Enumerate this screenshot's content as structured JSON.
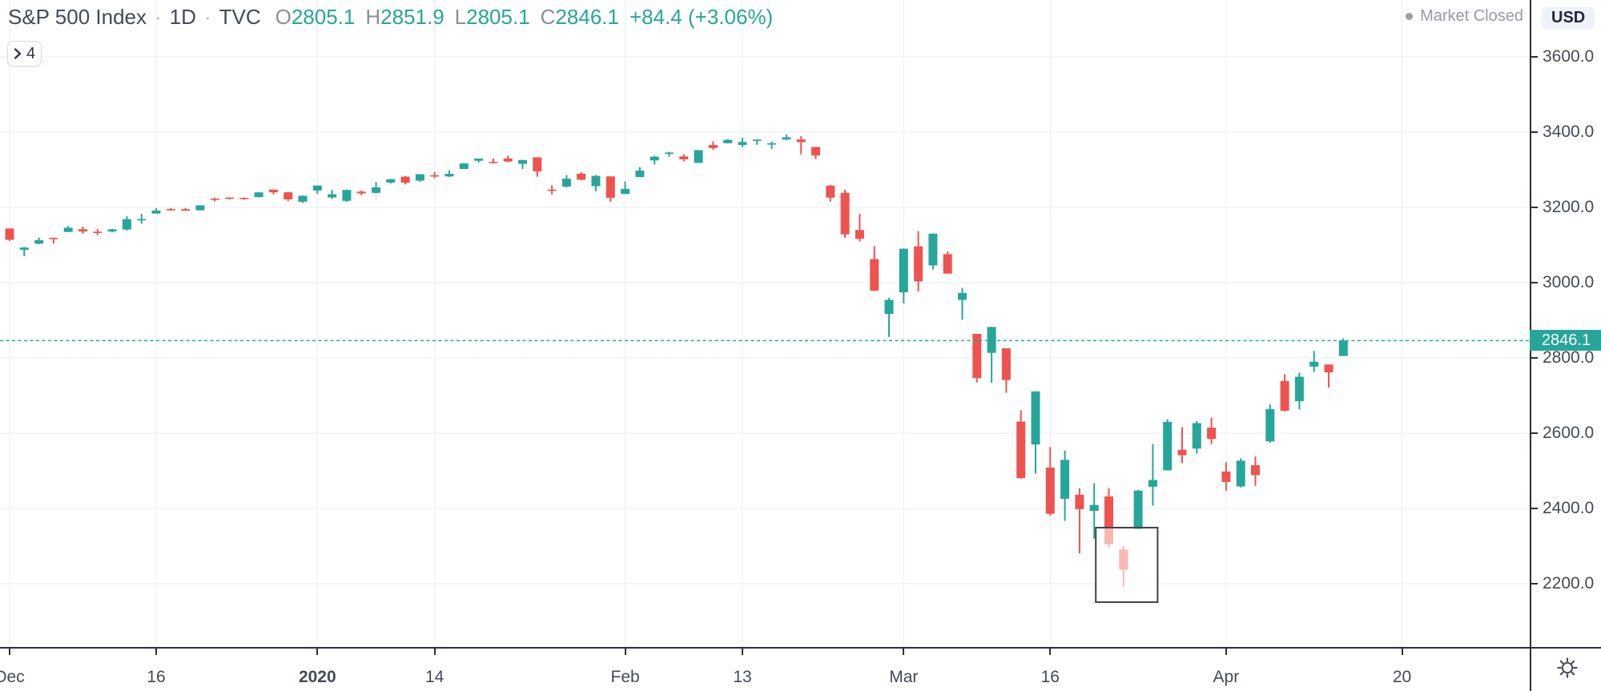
{
  "header": {
    "symbol": "S&P 500 Index",
    "separator": "·",
    "interval": "1D",
    "exchange": "TVC",
    "ohlc": [
      {
        "label": "O",
        "value": "2805.1"
      },
      {
        "label": "H",
        "value": "2851.9"
      },
      {
        "label": "L",
        "value": "2805.1"
      },
      {
        "label": "C",
        "value": "2846.1"
      }
    ],
    "change": "+84.4 (+3.06%)",
    "market_status": "Market Closed",
    "currency": "USD"
  },
  "toolbar": {
    "tree_button_count": "4"
  },
  "price_axis": {
    "last_price_label": "2846.1"
  },
  "colors": {
    "up": "#26a69a",
    "down": "#ef5350",
    "grid": "#e8eef5",
    "axis_line": "#2b2f3a",
    "axis_text": "#444a55",
    "legend_text": "#454a57",
    "muted_text": "#8c8f98",
    "status_text": "#999ca4",
    "currency_badge_bg": "#eff2f8",
    "last_price_bg": "#26a69a",
    "drawing_border": "#3e424d",
    "drawing_fill": "rgba(255,255,255,0.58)"
  },
  "chart_data": {
    "type": "candlestick",
    "title": "S&P 500 Index",
    "interval": "1D",
    "exchange": "TVC",
    "currency": "USD",
    "grid": "on",
    "ylim": [
      2030,
      3755
    ],
    "price_line": 2846.1,
    "price_gridlines": [
      {
        "price": 3600,
        "text": "3600.0"
      },
      {
        "price": 3400,
        "text": "3400.0"
      },
      {
        "price": 3200,
        "text": "3200.0"
      },
      {
        "price": 3000,
        "text": "3000.0"
      },
      {
        "price": 2800,
        "text": "2800.0"
      },
      {
        "price": 2600,
        "text": "2600.0"
      },
      {
        "price": 2400,
        "text": "2400.0"
      },
      {
        "price": 2200,
        "text": "2200.0"
      }
    ],
    "time_labels": [
      {
        "text": "Dec",
        "index": 0,
        "bold": false
      },
      {
        "text": "16",
        "index": 10,
        "bold": false
      },
      {
        "text": "2020",
        "index": 21,
        "bold": true
      },
      {
        "text": "14",
        "index": 29,
        "bold": false
      },
      {
        "text": "Feb",
        "index": 42,
        "bold": false
      },
      {
        "text": "13",
        "index": 50,
        "bold": false
      },
      {
        "text": "Mar",
        "index": 61,
        "bold": false
      },
      {
        "text": "16",
        "index": 71,
        "bold": false
      },
      {
        "text": "Apr",
        "index": 83,
        "bold": false
      },
      {
        "text": "20",
        "index": 95,
        "bold": false
      }
    ],
    "drawing_rectangle": {
      "start_index": 74,
      "end_index": 78,
      "start_date": "2020-03-19",
      "end_date": "2020-03-25",
      "price_top": 2349,
      "price_bottom": 2151
    },
    "columns": [
      "date",
      "open",
      "high",
      "low",
      "close"
    ],
    "candles": [
      [
        "2019-12-02",
        3143.9,
        3144.3,
        3110.8,
        3113.9
      ],
      [
        "2019-12-03",
        3087.4,
        3094.9,
        3070.3,
        3093.2
      ],
      [
        "2019-12-04",
        3103.5,
        3119.4,
        3102.2,
        3112.8
      ],
      [
        "2019-12-05",
        3119.2,
        3119.4,
        3103.8,
        3117.4
      ],
      [
        "2019-12-06",
        3134.6,
        3150.6,
        3134.6,
        3145.9
      ],
      [
        "2019-12-09",
        3141.9,
        3148.9,
        3130.0,
        3136.0
      ],
      [
        "2019-12-10",
        3135.4,
        3142.1,
        3126.1,
        3132.5
      ],
      [
        "2019-12-11",
        3135.8,
        3143.3,
        3133.2,
        3141.6
      ],
      [
        "2019-12-12",
        3141.2,
        3176.3,
        3138.5,
        3168.6
      ],
      [
        "2019-12-13",
        3166.7,
        3182.7,
        3156.5,
        3168.8
      ],
      [
        "2019-12-16",
        3183.6,
        3197.7,
        3183.6,
        3191.5
      ],
      [
        "2019-12-17",
        3195.4,
        3198.2,
        3191.0,
        3192.5
      ],
      [
        "2019-12-18",
        3195.2,
        3198.5,
        3191.1,
        3191.1
      ],
      [
        "2019-12-19",
        3192.3,
        3205.5,
        3192.3,
        3205.4
      ],
      [
        "2019-12-20",
        3223.3,
        3225.7,
        3216.0,
        3221.2
      ],
      [
        "2019-12-23",
        3226.1,
        3226.4,
        3220.5,
        3224.0
      ],
      [
        "2019-12-24",
        3225.4,
        3226.3,
        3220.1,
        3223.4
      ],
      [
        "2019-12-26",
        3227.2,
        3240.1,
        3227.2,
        3239.9
      ],
      [
        "2019-12-27",
        3247.2,
        3247.9,
        3234.4,
        3240.0
      ],
      [
        "2019-12-30",
        3240.1,
        3240.9,
        3216.6,
        3221.3
      ],
      [
        "2019-12-31",
        3215.2,
        3231.7,
        3212.0,
        3230.8
      ],
      [
        "2020-01-02",
        3244.7,
        3258.1,
        3235.5,
        3257.9
      ],
      [
        "2020-01-03",
        3226.4,
        3246.2,
        3222.3,
        3234.9
      ],
      [
        "2020-01-06",
        3217.6,
        3246.8,
        3214.6,
        3246.3
      ],
      [
        "2020-01-07",
        3241.9,
        3244.9,
        3232.4,
        3237.2
      ],
      [
        "2020-01-08",
        3238.6,
        3267.1,
        3236.7,
        3253.1
      ],
      [
        "2020-01-09",
        3266.0,
        3275.6,
        3263.3,
        3274.7
      ],
      [
        "2020-01-10",
        3281.8,
        3283.0,
        3260.9,
        3265.4
      ],
      [
        "2020-01-13",
        3271.1,
        3288.1,
        3268.4,
        3288.1
      ],
      [
        "2020-01-14",
        3285.4,
        3294.2,
        3277.2,
        3283.2
      ],
      [
        "2020-01-15",
        3282.3,
        3298.7,
        3280.7,
        3289.3
      ],
      [
        "2020-01-16",
        3302.0,
        3317.1,
        3302.0,
        3316.8
      ],
      [
        "2020-01-17",
        3324.0,
        3329.9,
        3318.9,
        3329.6
      ],
      [
        "2020-01-21",
        3321.0,
        3329.8,
        3316.6,
        3320.8
      ],
      [
        "2020-01-22",
        3330.0,
        3337.8,
        3320.0,
        3321.8
      ],
      [
        "2020-01-23",
        3315.8,
        3326.9,
        3301.9,
        3325.5
      ],
      [
        "2020-01-24",
        3333.1,
        3333.2,
        3281.5,
        3295.5
      ],
      [
        "2020-01-27",
        3247.2,
        3258.9,
        3234.5,
        3243.6
      ],
      [
        "2020-01-28",
        3255.4,
        3285.8,
        3253.2,
        3276.2
      ],
      [
        "2020-01-29",
        3289.5,
        3293.5,
        3271.9,
        3273.4
      ],
      [
        "2020-01-30",
        3256.5,
        3285.9,
        3242.8,
        3283.7
      ],
      [
        "2020-01-31",
        3282.3,
        3282.3,
        3214.7,
        3225.5
      ],
      [
        "2020-02-03",
        3235.7,
        3268.4,
        3235.7,
        3248.9
      ],
      [
        "2020-02-04",
        3280.6,
        3306.9,
        3280.6,
        3297.6
      ],
      [
        "2020-02-05",
        3324.9,
        3337.6,
        3313.8,
        3334.7
      ],
      [
        "2020-02-06",
        3344.9,
        3348.0,
        3334.4,
        3345.8
      ],
      [
        "2020-02-07",
        3335.5,
        3341.4,
        3322.1,
        3327.7
      ],
      [
        "2020-02-10",
        3318.3,
        3352.3,
        3317.8,
        3352.1
      ],
      [
        "2020-02-11",
        3365.9,
        3375.6,
        3352.7,
        3357.8
      ],
      [
        "2020-02-12",
        3370.5,
        3381.5,
        3369.7,
        3379.5
      ],
      [
        "2020-02-13",
        3365.9,
        3385.1,
        3360.5,
        3373.9
      ],
      [
        "2020-02-14",
        3378.1,
        3380.7,
        3366.2,
        3380.2
      ],
      [
        "2020-02-18",
        3369.0,
        3375.0,
        3355.6,
        3370.3
      ],
      [
        "2020-02-19",
        3380.4,
        3393.5,
        3378.8,
        3386.2
      ],
      [
        "2020-02-20",
        3380.5,
        3389.2,
        3341.0,
        3373.2
      ],
      [
        "2020-02-21",
        3360.5,
        3360.8,
        3328.4,
        3337.8
      ],
      [
        "2020-02-24",
        3257.6,
        3259.8,
        3214.7,
        3225.9
      ],
      [
        "2020-02-25",
        3238.9,
        3247.0,
        3118.8,
        3128.2
      ],
      [
        "2020-02-26",
        3139.9,
        3182.5,
        3109.0,
        3116.4
      ],
      [
        "2020-02-27",
        3062.5,
        3097.1,
        2977.4,
        2978.8
      ],
      [
        "2020-02-28",
        2916.9,
        2959.7,
        2855.8,
        2954.2
      ],
      [
        "2020-03-02",
        2974.3,
        3091.0,
        2945.2,
        3090.2
      ],
      [
        "2020-03-03",
        3096.5,
        3136.7,
        2976.6,
        3003.4
      ],
      [
        "2020-03-04",
        3045.8,
        3131.0,
        3034.4,
        3130.1
      ],
      [
        "2020-03-05",
        3075.7,
        3083.0,
        3024.4,
        3023.9
      ],
      [
        "2020-03-06",
        2954.2,
        2985.9,
        2901.5,
        2972.4
      ],
      [
        "2020-03-09",
        2863.9,
        2863.9,
        2734.4,
        2746.6
      ],
      [
        "2020-03-10",
        2813.5,
        2882.6,
        2734.0,
        2882.2
      ],
      [
        "2020-03-11",
        2825.6,
        2825.6,
        2707.2,
        2741.4
      ],
      [
        "2020-03-12",
        2630.9,
        2661.0,
        2478.9,
        2480.6
      ],
      [
        "2020-03-13",
        2570.0,
        2711.3,
        2492.4,
        2711.0
      ],
      [
        "2020-03-16",
        2508.6,
        2563.0,
        2380.9,
        2386.1
      ],
      [
        "2020-03-17",
        2425.7,
        2553.9,
        2367.0,
        2529.2
      ],
      [
        "2020-03-18",
        2436.5,
        2453.6,
        2280.5,
        2398.1
      ],
      [
        "2020-03-19",
        2393.5,
        2467.0,
        2319.8,
        2409.4
      ],
      [
        "2020-03-20",
        2431.9,
        2453.0,
        2295.6,
        2304.9
      ],
      [
        "2020-03-23",
        2290.7,
        2300.7,
        2191.9,
        2237.4
      ],
      [
        "2020-03-24",
        2344.4,
        2449.7,
        2344.4,
        2447.3
      ],
      [
        "2020-03-25",
        2457.8,
        2571.4,
        2407.5,
        2475.6
      ],
      [
        "2020-03-26",
        2501.3,
        2637.0,
        2500.7,
        2630.1
      ],
      [
        "2020-03-27",
        2555.9,
        2615.9,
        2520.0,
        2541.5
      ],
      [
        "2020-03-30",
        2559.0,
        2631.8,
        2545.3,
        2626.7
      ],
      [
        "2020-03-31",
        2614.7,
        2641.4,
        2571.2,
        2584.6
      ],
      [
        "2020-04-01",
        2498.1,
        2522.8,
        2447.5,
        2470.5
      ],
      [
        "2020-04-02",
        2458.5,
        2533.2,
        2455.8,
        2526.9
      ],
      [
        "2020-04-03",
        2514.9,
        2538.2,
        2460.0,
        2488.7
      ],
      [
        "2020-04-06",
        2578.3,
        2676.9,
        2574.6,
        2663.7
      ],
      [
        "2020-04-07",
        2738.7,
        2756.9,
        2657.7,
        2659.4
      ],
      [
        "2020-04-08",
        2685.0,
        2760.8,
        2663.3,
        2750.0
      ],
      [
        "2020-04-09",
        2776.9,
        2818.6,
        2762.4,
        2789.8
      ],
      [
        "2020-04-13",
        2782.5,
        2782.5,
        2721.2,
        2761.6
      ],
      [
        "2020-04-14",
        2805.1,
        2851.9,
        2805.1,
        2846.1
      ]
    ]
  }
}
